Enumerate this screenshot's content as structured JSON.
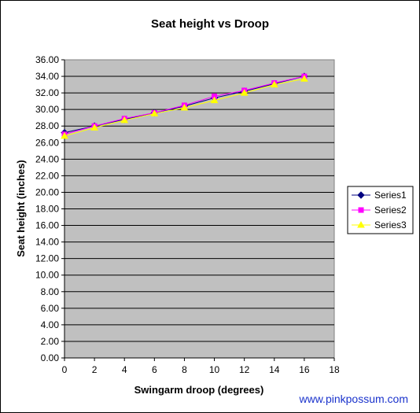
{
  "chart_data": {
    "type": "line",
    "title": "Seat height vs Droop",
    "xlabel": "Swingarm droop (degrees)",
    "ylabel": "Seat height (inches)",
    "xlim": [
      0,
      18
    ],
    "ylim": [
      0,
      36
    ],
    "x_ticks": [
      "0",
      "2",
      "4",
      "6",
      "8",
      "10",
      "12",
      "14",
      "16",
      "18"
    ],
    "y_ticks": [
      "0.00",
      "2.00",
      "4.00",
      "6.00",
      "8.00",
      "10.00",
      "12.00",
      "14.00",
      "16.00",
      "18.00",
      "20.00",
      "22.00",
      "24.00",
      "26.00",
      "28.00",
      "30.00",
      "32.00",
      "34.00",
      "36.00"
    ],
    "grid": "horizontal",
    "legend_position": "right",
    "x": [
      0,
      2,
      4,
      6,
      8,
      10,
      12,
      14,
      16
    ],
    "series": [
      {
        "name": "Series1",
        "color": "#000080",
        "marker": "diamond",
        "values": [
          27.2,
          28.0,
          28.8,
          29.6,
          30.4,
          31.4,
          32.2,
          33.1,
          34.0
        ]
      },
      {
        "name": "Series2",
        "color": "#ff00ff",
        "marker": "square",
        "values": [
          27.0,
          28.0,
          28.9,
          29.6,
          30.5,
          31.6,
          32.3,
          33.2,
          34.0
        ]
      },
      {
        "name": "Series3",
        "color": "#ffff00",
        "marker": "triangle",
        "values": [
          26.8,
          27.8,
          28.7,
          29.5,
          30.2,
          31.1,
          32.0,
          33.0,
          33.7
        ]
      }
    ],
    "plot_background": "#c0c0c0"
  },
  "credit_text": "www.pinkpossum.com"
}
